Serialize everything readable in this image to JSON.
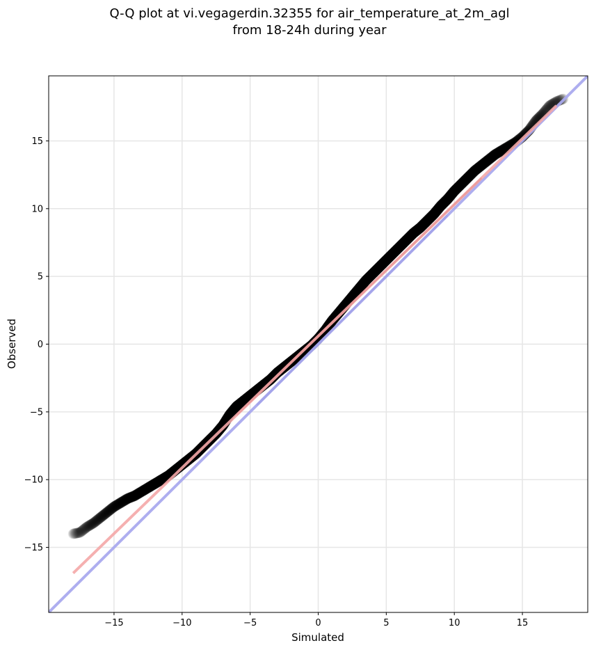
{
  "title": {
    "line1": "Q-Q plot at vi.vegagerdin.32355 for air_temperature_at_2m_agl",
    "line2": "from 18-24h during year"
  },
  "chart_data": {
    "type": "scatter",
    "xlabel": "Simulated",
    "ylabel": "Observed",
    "xlim": [
      -19.8,
      19.8
    ],
    "ylim": [
      -19.8,
      19.8
    ],
    "x_ticks": [
      -15,
      -10,
      -5,
      0,
      5,
      10,
      15
    ],
    "y_ticks": [
      -15,
      -10,
      -5,
      0,
      5,
      10,
      15
    ],
    "x_tick_labels": [
      "−15",
      "−10",
      "−5",
      "0",
      "5",
      "10",
      "15"
    ],
    "y_tick_labels": [
      "−15",
      "−10",
      "−5",
      "0",
      "5",
      "10",
      "15"
    ],
    "grid": true,
    "colors": {
      "points": "#000000",
      "identity_line": "#aaaaee",
      "fit_line": "#f4a7a7",
      "inner_fit": "#8b1010",
      "inner_identity": "#101c8a"
    },
    "identity_line": {
      "x": [
        -19.8,
        19.8
      ],
      "y": [
        -19.8,
        19.8
      ]
    },
    "fit_line": {
      "x": [
        -18,
        17.5
      ],
      "y": [
        -16.9,
        17.6
      ]
    },
    "quantiles": {
      "x": [
        -18,
        -17.5,
        -17,
        -16.5,
        -16,
        -15.5,
        -15,
        -14.5,
        -14,
        -13.5,
        -13,
        -12.5,
        -12,
        -11.5,
        -11,
        -10.5,
        -10,
        -9.5,
        -9,
        -8.5,
        -8,
        -7.5,
        -7,
        -6.5,
        -6,
        -5.5,
        -5,
        -4.5,
        -4,
        -3.5,
        -3,
        -2.5,
        -2,
        -1.5,
        -1,
        -0.5,
        0,
        0.5,
        1,
        1.5,
        2,
        2.5,
        3,
        3.5,
        4,
        4.5,
        5,
        5.5,
        6,
        6.5,
        7,
        7.5,
        8,
        8.5,
        9,
        9.5,
        10,
        10.5,
        11,
        11.5,
        12,
        12.5,
        13,
        13.5,
        14,
        14.5,
        15,
        15.5,
        16,
        16.5,
        17,
        17.5,
        18
      ],
      "y": [
        -14.0,
        -13.9,
        -13.5,
        -13.2,
        -12.8,
        -12.4,
        -12.0,
        -11.7,
        -11.4,
        -11.2,
        -10.9,
        -10.6,
        -10.3,
        -10.0,
        -9.7,
        -9.3,
        -8.9,
        -8.5,
        -8.1,
        -7.6,
        -7.1,
        -6.6,
        -6.0,
        -5.2,
        -4.6,
        -4.2,
        -3.8,
        -3.4,
        -3.0,
        -2.6,
        -2.1,
        -1.7,
        -1.3,
        -0.9,
        -0.5,
        -0.1,
        0.4,
        1.0,
        1.7,
        2.3,
        2.9,
        3.5,
        4.1,
        4.7,
        5.2,
        5.7,
        6.2,
        6.7,
        7.2,
        7.7,
        8.2,
        8.6,
        9.1,
        9.6,
        10.2,
        10.7,
        11.3,
        11.8,
        12.3,
        12.8,
        13.2,
        13.6,
        14.0,
        14.3,
        14.6,
        14.9,
        15.3,
        15.8,
        16.5,
        17.0,
        17.6,
        17.9,
        18.1
      ]
    }
  }
}
